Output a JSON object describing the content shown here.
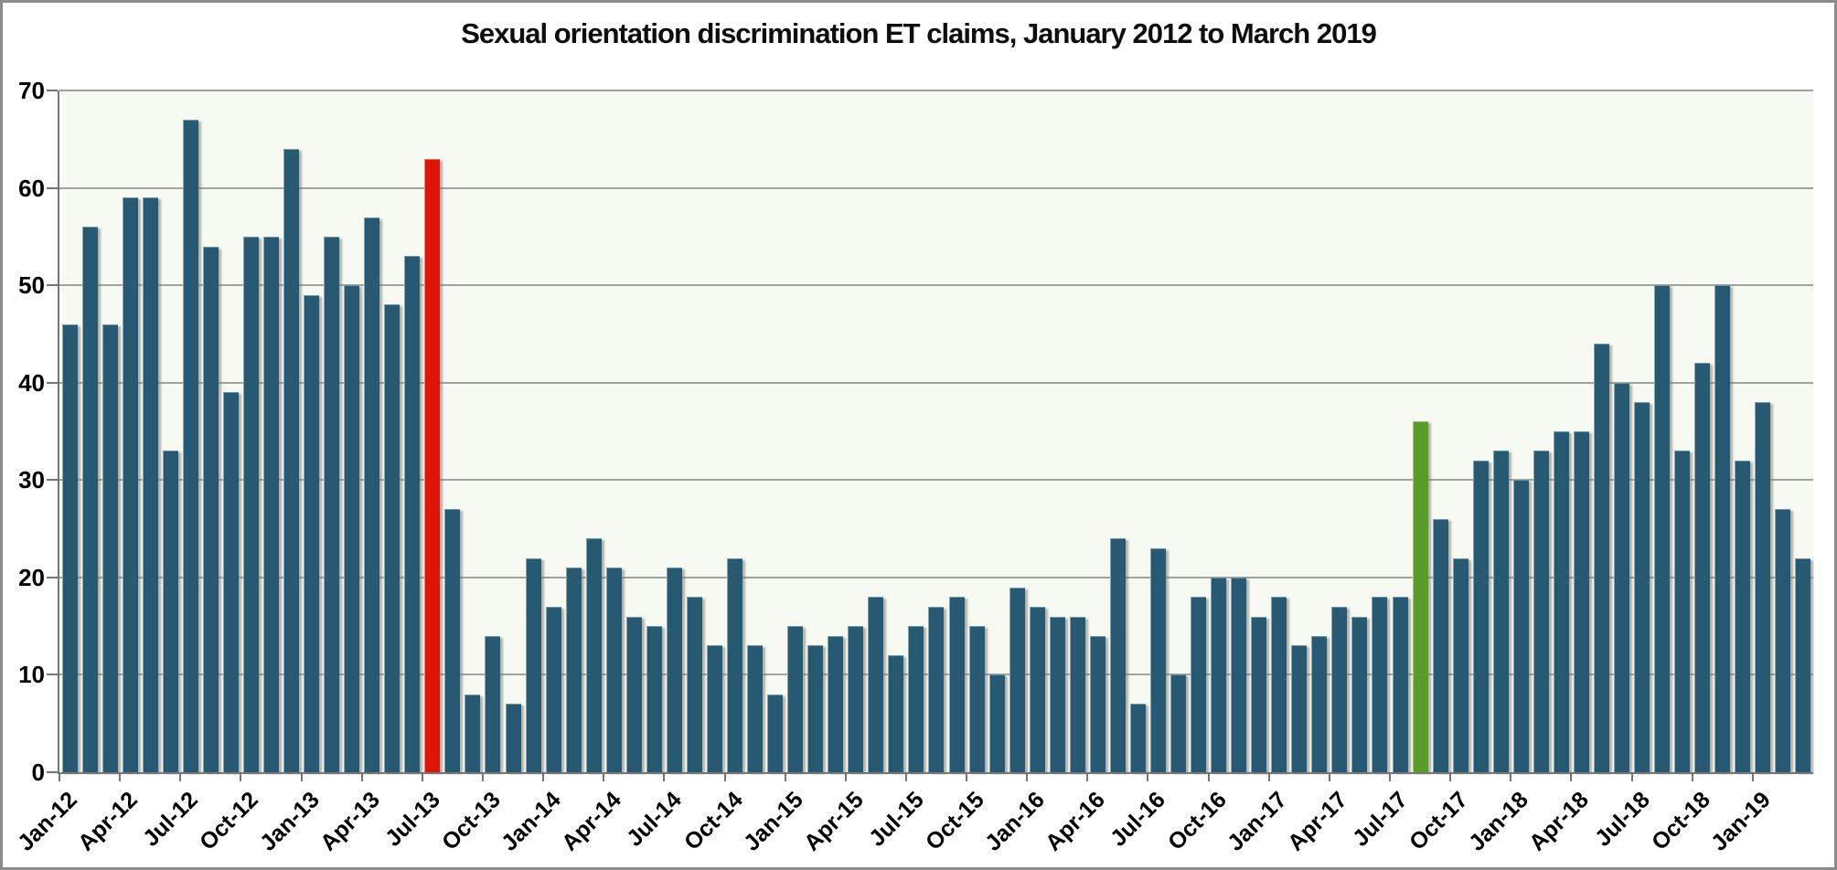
{
  "title": "Sexual orientation discrimination ET claims, January 2012 to March 2019",
  "colors": {
    "bar": "#275a72",
    "highlight_red": "#dc1506",
    "highlight_green": "#5a9b29",
    "plot_background": "#f7faf2",
    "gridline": "#a3a39e",
    "axis": "#767676",
    "page_background": "#ffffff",
    "text": "#000000"
  },
  "chart_data": {
    "type": "bar",
    "title": "Sexual orientation discrimination ET claims, January 2012 to March 2019",
    "xlabel": "",
    "ylabel": "",
    "ylim": [
      0,
      70
    ],
    "y_ticks": [
      0,
      10,
      20,
      30,
      40,
      50,
      60,
      70
    ],
    "grid": "horizontal",
    "legend": "none",
    "x_tick_label_rotation_deg": 45,
    "x_tick_labels": [
      "Jan-12",
      "Apr-12",
      "Jul-12",
      "Oct-12",
      "Jan-13",
      "Apr-13",
      "Jul-13",
      "Oct-13",
      "Jan-14",
      "Apr-14",
      "Jul-14",
      "Oct-14",
      "Jan-15",
      "Apr-15",
      "Jul-15",
      "Oct-15",
      "Jan-16",
      "Apr-16",
      "Jul-16",
      "Oct-16",
      "Jan-17",
      "Apr-17",
      "Jul-17",
      "Oct-17",
      "Jan-18",
      "Apr-18",
      "Jul-18",
      "Oct-18",
      "Jan-19"
    ],
    "categories": [
      "Jan-12",
      "Feb-12",
      "Mar-12",
      "Apr-12",
      "May-12",
      "Jun-12",
      "Jul-12",
      "Aug-12",
      "Sep-12",
      "Oct-12",
      "Nov-12",
      "Dec-12",
      "Jan-13",
      "Feb-13",
      "Mar-13",
      "Apr-13",
      "May-13",
      "Jun-13",
      "Jul-13",
      "Aug-13",
      "Sep-13",
      "Oct-13",
      "Nov-13",
      "Dec-13",
      "Jan-14",
      "Feb-14",
      "Mar-14",
      "Apr-14",
      "May-14",
      "Jun-14",
      "Jul-14",
      "Aug-14",
      "Sep-14",
      "Oct-14",
      "Nov-14",
      "Dec-14",
      "Jan-15",
      "Feb-15",
      "Mar-15",
      "Apr-15",
      "May-15",
      "Jun-15",
      "Jul-15",
      "Aug-15",
      "Sep-15",
      "Oct-15",
      "Nov-15",
      "Dec-15",
      "Jan-16",
      "Feb-16",
      "Mar-16",
      "Apr-16",
      "May-16",
      "Jun-16",
      "Jul-16",
      "Aug-16",
      "Sep-16",
      "Oct-16",
      "Nov-16",
      "Dec-16",
      "Jan-17",
      "Feb-17",
      "Mar-17",
      "Apr-17",
      "May-17",
      "Jun-17",
      "Jul-17",
      "Aug-17",
      "Sep-17",
      "Oct-17",
      "Nov-17",
      "Dec-17",
      "Jan-18",
      "Feb-18",
      "Mar-18",
      "Apr-18",
      "May-18",
      "Jun-18",
      "Jul-18",
      "Aug-18",
      "Sep-18",
      "Oct-18",
      "Nov-18",
      "Dec-18",
      "Jan-19",
      "Feb-19",
      "Mar-19"
    ],
    "values": [
      46,
      56,
      46,
      59,
      59,
      33,
      67,
      54,
      39,
      55,
      55,
      64,
      49,
      55,
      50,
      57,
      48,
      53,
      63,
      27,
      8,
      14,
      7,
      22,
      17,
      21,
      24,
      21,
      16,
      15,
      21,
      18,
      13,
      22,
      13,
      8,
      15,
      13,
      14,
      15,
      18,
      12,
      15,
      17,
      18,
      15,
      10,
      19,
      17,
      16,
      16,
      14,
      24,
      7,
      23,
      10,
      18,
      20,
      20,
      16,
      18,
      13,
      14,
      17,
      16,
      18,
      18,
      36,
      26,
      22,
      32,
      33,
      30,
      33,
      35,
      35,
      44,
      40,
      38,
      50,
      33,
      42,
      50,
      32,
      38,
      27,
      22
    ],
    "highlighted_bars": {
      "Jul-13": "red",
      "Aug-17": "green"
    }
  }
}
